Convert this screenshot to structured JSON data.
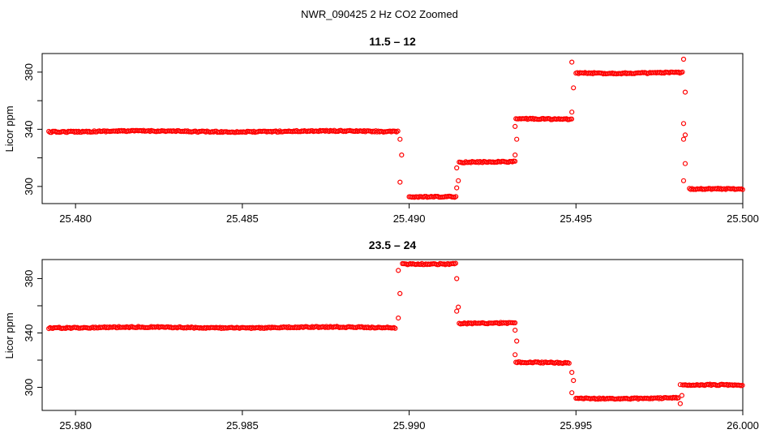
{
  "suptitle": "NWR_090425  2 Hz CO2 Zoomed",
  "colors": {
    "points": "#ff0000",
    "axis": "#000000"
  },
  "chart_data": [
    {
      "type": "scatter",
      "title": "11.5 – 12",
      "xlabel": "",
      "ylabel": "Licor ppm",
      "xlim": [
        25.479,
        25.5
      ],
      "ylim": [
        288,
        393
      ],
      "xticks": [
        25.48,
        25.485,
        25.49,
        25.495,
        25.5
      ],
      "xtick_labels": [
        "25.480",
        "25.485",
        "25.490",
        "25.495",
        "25.500"
      ],
      "yticks": [
        300,
        340,
        380
      ],
      "ytick_labels": [
        "300",
        "340",
        "380"
      ],
      "marker": "open-circle",
      "segments": [
        {
          "x0": 25.4792,
          "x1": 25.4897,
          "y": 338.5
        },
        {
          "x0": 25.49,
          "x1": 25.4914,
          "y": 293
        },
        {
          "x0": 25.4915,
          "x1": 25.4932,
          "y": 317
        },
        {
          "x0": 25.4932,
          "x1": 25.4949,
          "y": 347
        },
        {
          "x0": 25.495,
          "x1": 25.4982,
          "y": 379.5
        },
        {
          "x0": 25.4984,
          "x1": 25.5,
          "y": 298
        }
      ],
      "transitions": [
        {
          "x": 25.48975,
          "y": [
            333,
            322,
            303
          ]
        },
        {
          "x": 25.49145,
          "y": [
            299,
            304,
            313
          ]
        },
        {
          "x": 25.4932,
          "y": [
            322,
            333,
            342
          ]
        },
        {
          "x": 25.4949,
          "y": [
            352,
            369,
            387
          ]
        },
        {
          "x": 25.49825,
          "y": [
            389,
            366,
            344,
            336,
            333,
            316,
            304
          ]
        }
      ]
    },
    {
      "type": "scatter",
      "title": "23.5 – 24",
      "xlabel": "",
      "ylabel": "Licor ppm",
      "xlim": [
        25.979,
        26.0
      ],
      "ylim": [
        283,
        394
      ],
      "xticks": [
        25.98,
        25.985,
        25.99,
        25.995,
        26.0
      ],
      "xtick_labels": [
        "25.980",
        "25.985",
        "25.990",
        "25.995",
        "26.000"
      ],
      "yticks": [
        300,
        340,
        380
      ],
      "ytick_labels": [
        "300",
        "340",
        "380"
      ],
      "marker": "open-circle",
      "segments": [
        {
          "x0": 25.9792,
          "x1": 25.9896,
          "y": 344
        },
        {
          "x0": 25.9898,
          "x1": 25.9914,
          "y": 391
        },
        {
          "x0": 25.9915,
          "x1": 25.9932,
          "y": 347
        },
        {
          "x0": 25.9932,
          "x1": 25.9948,
          "y": 318
        },
        {
          "x0": 25.995,
          "x1": 25.9981,
          "y": 292
        },
        {
          "x0": 25.9982,
          "x1": 26.0,
          "y": 301.5
        }
      ],
      "transitions": [
        {
          "x": 25.9897,
          "y": [
            351,
            369,
            386
          ]
        },
        {
          "x": 25.99145,
          "y": [
            380,
            359,
            356
          ]
        },
        {
          "x": 25.9932,
          "y": [
            342,
            334,
            324
          ]
        },
        {
          "x": 25.9949,
          "y": [
            311,
            305,
            296
          ]
        },
        {
          "x": 25.99815,
          "y": [
            288,
            294,
            302
          ]
        }
      ]
    }
  ]
}
